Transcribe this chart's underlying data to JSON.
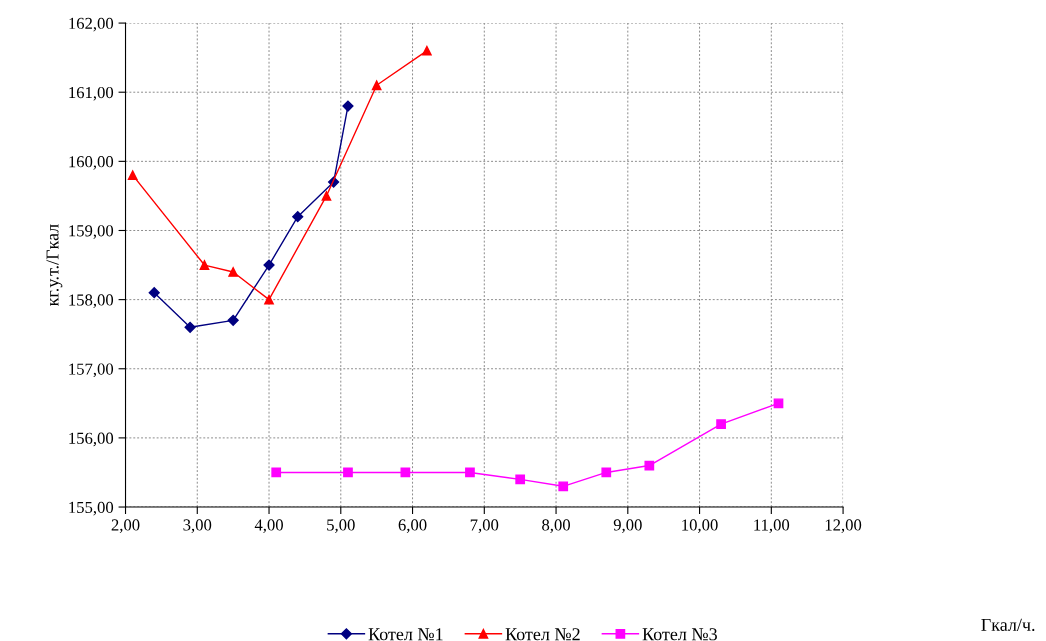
{
  "chart_data": {
    "type": "line",
    "annotations": [
      "Гкал/ч."
    ],
    "ylabel": "кг.у.т./Гкал",
    "xlim": [
      2,
      12
    ],
    "ylim": [
      155,
      162
    ],
    "xticks": [
      {
        "value": 2,
        "label": "2,00"
      },
      {
        "value": 3,
        "label": "3,00"
      },
      {
        "value": 4,
        "label": "4,00"
      },
      {
        "value": 5,
        "label": "5,00"
      },
      {
        "value": 6,
        "label": "6,00"
      },
      {
        "value": 7,
        "label": "7,00"
      },
      {
        "value": 8,
        "label": "8,00"
      },
      {
        "value": 9,
        "label": "9,00"
      },
      {
        "value": 10,
        "label": "10,00"
      },
      {
        "value": 11,
        "label": "11,00"
      },
      {
        "value": 12,
        "label": "12,00"
      }
    ],
    "yticks": [
      {
        "value": 155,
        "label": "155,00"
      },
      {
        "value": 156,
        "label": "156,00"
      },
      {
        "value": 157,
        "label": "157,00"
      },
      {
        "value": 158,
        "label": "158,00"
      },
      {
        "value": 159,
        "label": "159,00"
      },
      {
        "value": 160,
        "label": "160,00"
      },
      {
        "value": 161,
        "label": "161,00"
      },
      {
        "value": 162,
        "label": "162,00"
      }
    ],
    "grid": true,
    "legend": "bottom",
    "line_style": "solid",
    "series": [
      {
        "name": "Котел №1",
        "color": "#000080",
        "marker": "diamond",
        "x": [
          2.4,
          2.9,
          3.5,
          4.0,
          4.4,
          4.9,
          5.1
        ],
        "values": [
          158.1,
          157.6,
          157.7,
          158.5,
          159.2,
          159.7,
          160.8
        ]
      },
      {
        "name": "Котел №2",
        "color": "#ff0000",
        "marker": "triangle",
        "x": [
          2.1,
          3.1,
          3.5,
          4.0,
          4.8,
          5.5,
          6.2
        ],
        "values": [
          159.8,
          158.5,
          158.4,
          158.0,
          159.5,
          161.1,
          161.6
        ]
      },
      {
        "name": "Котел №3",
        "color": "#ff00ff",
        "marker": "square",
        "x": [
          4.1,
          5.1,
          5.9,
          6.8,
          7.5,
          8.1,
          8.7,
          9.3,
          10.3,
          11.1
        ],
        "values": [
          155.5,
          155.5,
          155.5,
          155.5,
          155.4,
          155.3,
          155.5,
          155.6,
          156.2,
          156.5
        ]
      }
    ]
  }
}
